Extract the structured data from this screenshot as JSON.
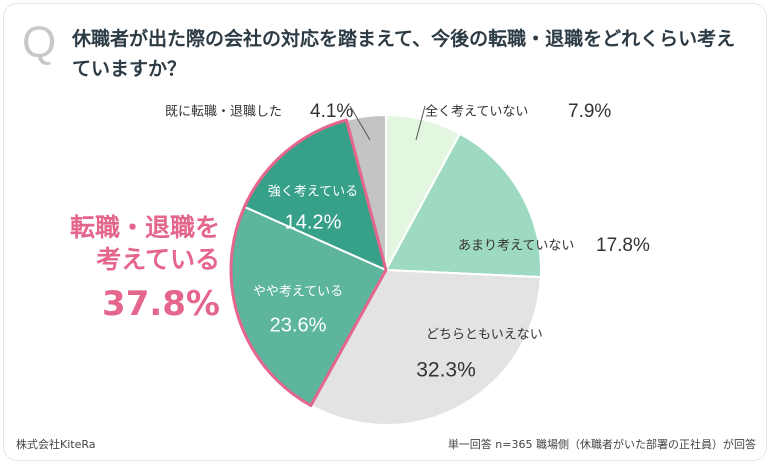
{
  "title": "休職者が出た際の会社の対応を踏まえて、今後の転職・退職をどれくらい考えていますか？",
  "q_mark": "Q",
  "highlight": {
    "label_line1": "転職・退職を",
    "label_line2": "考えている",
    "value": "37.8%"
  },
  "company": "株式会社KiteRa",
  "footnote": "単一回答 n=365 職場側（休職者がいた部署の正社員）が回答",
  "chart_data": {
    "type": "pie",
    "title": "休職者が出た際の会社の対応を踏まえて、今後の転職・退職をどれくらい考えていますか？",
    "start": "12 o'clock, clockwise",
    "slices": [
      {
        "label": "全く考えていない",
        "value": 7.9,
        "display": "7.9%",
        "color": "#e3f6e0"
      },
      {
        "label": "あまり考えていない",
        "value": 17.8,
        "display": "17.8%",
        "color": "#9ed9c2"
      },
      {
        "label": "どちらともいえない",
        "value": 32.3,
        "display": "32.3%",
        "color": "#e3e3e3"
      },
      {
        "label": "やや考えている",
        "value": 23.6,
        "display": "23.6%",
        "color": "#5db59e"
      },
      {
        "label": "強く考えている",
        "value": 14.2,
        "display": "14.2%",
        "color": "#36a089"
      },
      {
        "label": "既に転職・退職した",
        "value": 4.1,
        "display": "4.1%",
        "color": "#c4c4c4"
      }
    ],
    "highlight_group": [
      "やや考えている",
      "強く考えている"
    ],
    "highlight_color": "#e5668c"
  }
}
